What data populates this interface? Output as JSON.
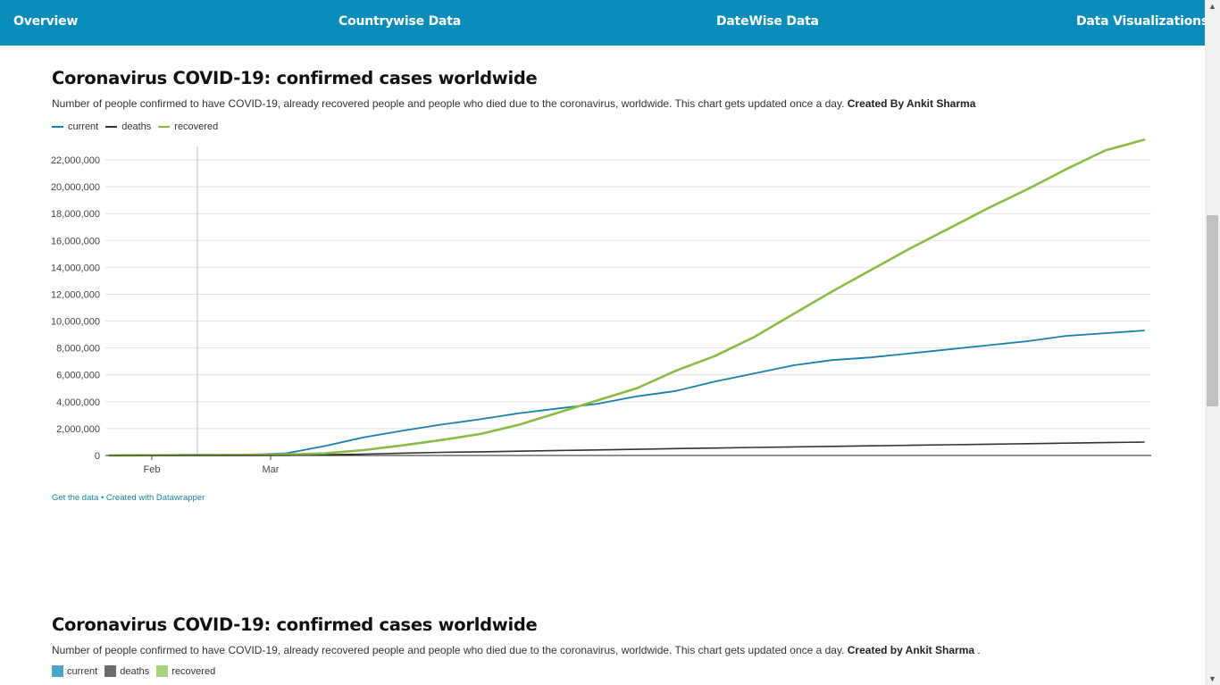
{
  "nav": {
    "overview": "Overview",
    "countrywise": "Countrywise Data",
    "datewise": "DateWise Data",
    "visualizations": "Data Visualizations"
  },
  "chart1": {
    "title": "Coronavirus COVID-19: confirmed cases worldwide",
    "subtitle": "Number of people confirmed to have COVID-19, already recovered people and people who died due to the coronavirus, worldwide. This chart gets updated once a day.",
    "subtitle_bold": "Created By Ankit Sharma",
    "legend": [
      "current",
      "deaths",
      "recovered"
    ],
    "footer": {
      "get_data": "Get the data",
      "sep": "•",
      "created": "Created with Datawrapper"
    }
  },
  "chart2": {
    "title": "Coronavirus COVID-19: confirmed cases worldwide",
    "subtitle": "Number of people confirmed to have COVID-19, already recovered people and people who died due to the coronavirus, worldwide. This chart gets updated once a day.",
    "subtitle_bold": "Created by Ankit Sharma",
    "subtitle_end": ".",
    "legend": [
      "current",
      "deaths",
      "recovered"
    ]
  },
  "colors": {
    "nav_bg": "#0a8cbb",
    "current": "#1a7fa8",
    "deaths": "#333333",
    "recovered": "#8cbb45",
    "link": "#1d81a2"
  },
  "chart_data": {
    "type": "line",
    "y_tick_labels": [
      "0",
      "2,000,000",
      "4,000,000",
      "6,000,000",
      "8,000,000",
      "10,000,000",
      "12,000,000",
      "14,000,000",
      "16,000,000",
      "18,000,000",
      "20,000,000",
      "22,000,000"
    ],
    "x_tick_labels": [
      "Feb",
      "Mar"
    ],
    "ylim": [
      0,
      23000000
    ],
    "grid": true,
    "legend_position": "top-left",
    "x_days": [
      0,
      20,
      35,
      45,
      55,
      65,
      75,
      85,
      95,
      105,
      115,
      125,
      135,
      145,
      155,
      165,
      175,
      185,
      195,
      205,
      215,
      225,
      235,
      245,
      255,
      265
    ],
    "series": [
      {
        "name": "current",
        "values": [
          0,
          50000,
          60000,
          150000,
          700000,
          1350000,
          1850000,
          2300000,
          2700000,
          3150000,
          3500000,
          3850000,
          4400000,
          4800000,
          5500000,
          6100000,
          6700000,
          7100000,
          7300000,
          7600000,
          7900000,
          8200000,
          8500000,
          8900000,
          9100000,
          9300000
        ]
      },
      {
        "name": "deaths",
        "values": [
          0,
          1000,
          3000,
          10000,
          50000,
          100000,
          170000,
          230000,
          270000,
          320000,
          370000,
          410000,
          460000,
          510000,
          550000,
          600000,
          640000,
          680000,
          720000,
          760000,
          800000,
          840000,
          880000,
          920000,
          960000,
          1000000
        ]
      },
      {
        "name": "recovered",
        "values": [
          0,
          20000,
          50000,
          70000,
          150000,
          400000,
          750000,
          1150000,
          1600000,
          2300000,
          3200000,
          4100000,
          5000000,
          6300000,
          7400000,
          8800000,
          10500000,
          12200000,
          13800000,
          15400000,
          16900000,
          18400000,
          19800000,
          21300000,
          22700000,
          23500000
        ]
      }
    ]
  }
}
